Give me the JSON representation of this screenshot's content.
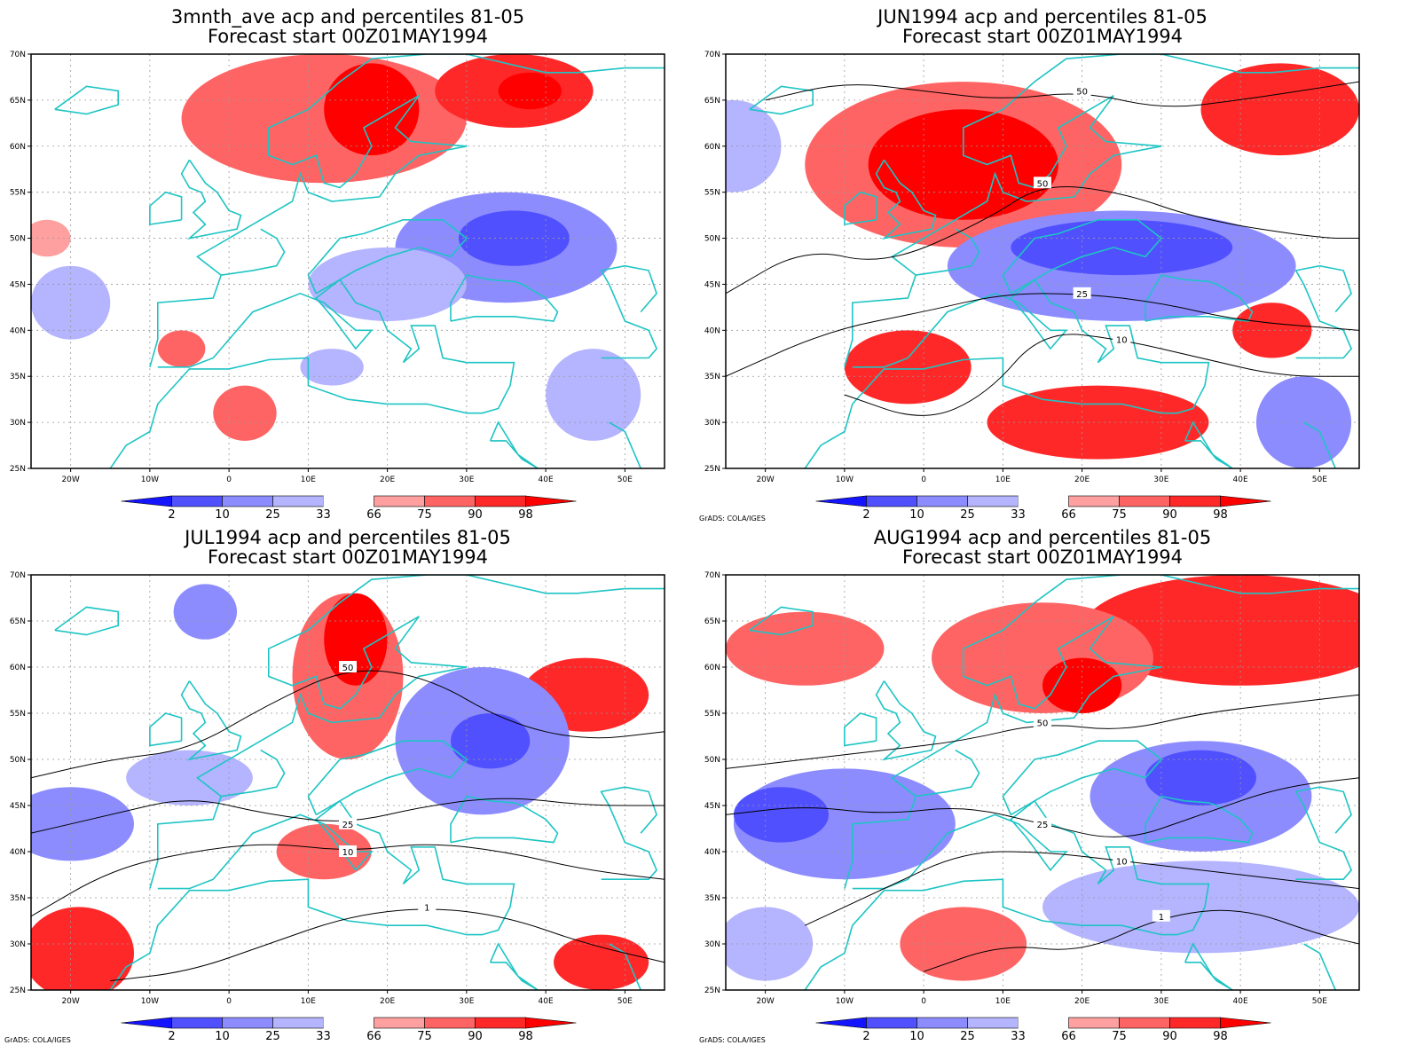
{
  "credit": "GrADS: COLA/IGES",
  "colors": {
    "coast": "#1ec4c4",
    "frame": "#000000",
    "contour": "#000000",
    "grid": "#999999",
    "bins": [
      "#1414ff",
      "#5050ff",
      "#8c8cff",
      "#b4b4ff",
      "#ffffff",
      "#ffa0a0",
      "#ff6464",
      "#ff2828",
      "#ff0000"
    ]
  },
  "colorbar_labels": [
    "2",
    "10",
    "25",
    "33",
    "66",
    "75",
    "90",
    "98"
  ],
  "axes": {
    "lat_labels": [
      "70N",
      "65N",
      "60N",
      "55N",
      "50N",
      "45N",
      "40N",
      "35N",
      "30N",
      "25N"
    ],
    "lon_labels": [
      "20W",
      "10W",
      "0",
      "10E",
      "20E",
      "30E",
      "40E",
      "50E"
    ]
  },
  "panels": [
    {
      "title1": "3mnth_ave acp and percentiles 81-05",
      "title2": "Forecast start 00Z01MAY1994",
      "show_credit": false,
      "anomalies": [
        {
          "lon": 12,
          "lat": 63,
          "rx": 18,
          "ry": 7,
          "cls": 6
        },
        {
          "lon": 18,
          "lat": 64,
          "rx": 6,
          "ry": 5,
          "cls": 8
        },
        {
          "lon": 36,
          "lat": 66,
          "rx": 10,
          "ry": 4,
          "cls": 7
        },
        {
          "lon": 38,
          "lat": 66,
          "rx": 4,
          "ry": 2,
          "cls": 8
        },
        {
          "lon": -23,
          "lat": 50,
          "rx": 3,
          "ry": 2,
          "cls": 5
        },
        {
          "lon": 2,
          "lat": 31,
          "rx": 4,
          "ry": 3,
          "cls": 6
        },
        {
          "lon": -6,
          "lat": 38,
          "rx": 3,
          "ry": 2,
          "cls": 6
        },
        {
          "lon": 35,
          "lat": 49,
          "rx": 14,
          "ry": 6,
          "cls": 2
        },
        {
          "lon": 36,
          "lat": 50,
          "rx": 7,
          "ry": 3,
          "cls": 1
        },
        {
          "lon": 20,
          "lat": 45,
          "rx": 10,
          "ry": 4,
          "cls": 3
        },
        {
          "lon": -20,
          "lat": 43,
          "rx": 5,
          "ry": 4,
          "cls": 3
        },
        {
          "lon": 46,
          "lat": 33,
          "rx": 6,
          "ry": 5,
          "cls": 3
        },
        {
          "lon": 13,
          "lat": 36,
          "rx": 4,
          "ry": 2,
          "cls": 3
        }
      ],
      "contours": []
    },
    {
      "title1": "JUN1994 acp and percentiles 81-05",
      "title2": "Forecast start 00Z01MAY1994",
      "show_credit": true,
      "anomalies": [
        {
          "lon": 5,
          "lat": 58,
          "rx": 20,
          "ry": 9,
          "cls": 6
        },
        {
          "lon": 5,
          "lat": 58,
          "rx": 12,
          "ry": 6,
          "cls": 8
        },
        {
          "lon": 45,
          "lat": 64,
          "rx": 10,
          "ry": 5,
          "cls": 7
        },
        {
          "lon": 22,
          "lat": 30,
          "rx": 14,
          "ry": 4,
          "cls": 7
        },
        {
          "lon": -2,
          "lat": 36,
          "rx": 8,
          "ry": 4,
          "cls": 7
        },
        {
          "lon": 25,
          "lat": 47,
          "rx": 22,
          "ry": 6,
          "cls": 2
        },
        {
          "lon": 25,
          "lat": 49,
          "rx": 14,
          "ry": 3,
          "cls": 1
        },
        {
          "lon": -24,
          "lat": 60,
          "rx": 6,
          "ry": 5,
          "cls": 3
        },
        {
          "lon": 48,
          "lat": 30,
          "rx": 6,
          "ry": 5,
          "cls": 2
        },
        {
          "lon": 44,
          "lat": 40,
          "rx": 5,
          "ry": 3,
          "cls": 7
        }
      ],
      "contours": [
        {
          "pts": [
            [
              -25,
              44
            ],
            [
              -15,
              49
            ],
            [
              -5,
              47
            ],
            [
              8,
              52
            ],
            [
              15,
              56
            ],
            [
              25,
              55
            ],
            [
              35,
              52
            ],
            [
              50,
              50
            ],
            [
              55,
              50
            ]
          ],
          "label": "50"
        },
        {
          "pts": [
            [
              -25,
              35
            ],
            [
              -12,
              40
            ],
            [
              0,
              42
            ],
            [
              10,
              44
            ],
            [
              20,
              44
            ],
            [
              30,
              43
            ],
            [
              40,
              41
            ],
            [
              55,
              40
            ]
          ],
          "label": "25"
        },
        {
          "pts": [
            [
              -10,
              33
            ],
            [
              0,
              30
            ],
            [
              8,
              33
            ],
            [
              15,
              40
            ],
            [
              25,
              39
            ],
            [
              35,
              37
            ],
            [
              45,
              35
            ],
            [
              55,
              35
            ]
          ],
          "label": "10"
        },
        {
          "pts": [
            [
              -20,
              65
            ],
            [
              -10,
              67
            ],
            [
              0,
              66
            ],
            [
              10,
              65
            ],
            [
              20,
              66
            ],
            [
              30,
              64
            ],
            [
              40,
              65
            ],
            [
              55,
              67
            ]
          ],
          "label": "50"
        }
      ]
    },
    {
      "title1": "JUL1994 acp and percentiles 81-05",
      "title2": "Forecast start 00Z01MAY1994",
      "show_credit": true,
      "anomalies": [
        {
          "lon": 15,
          "lat": 59,
          "rx": 7,
          "ry": 9,
          "cls": 6
        },
        {
          "lon": 16,
          "lat": 63,
          "rx": 4,
          "ry": 5,
          "cls": 8
        },
        {
          "lon": 45,
          "lat": 57,
          "rx": 8,
          "ry": 4,
          "cls": 7
        },
        {
          "lon": -19,
          "lat": 29,
          "rx": 7,
          "ry": 5,
          "cls": 7
        },
        {
          "lon": 47,
          "lat": 28,
          "rx": 6,
          "ry": 3,
          "cls": 7
        },
        {
          "lon": 32,
          "lat": 52,
          "rx": 11,
          "ry": 8,
          "cls": 2
        },
        {
          "lon": 33,
          "lat": 52,
          "rx": 5,
          "ry": 3,
          "cls": 1
        },
        {
          "lon": -3,
          "lat": 66,
          "rx": 4,
          "ry": 3,
          "cls": 2
        },
        {
          "lon": -20,
          "lat": 43,
          "rx": 8,
          "ry": 4,
          "cls": 2
        },
        {
          "lon": -5,
          "lat": 48,
          "rx": 8,
          "ry": 3,
          "cls": 3
        },
        {
          "lon": 12,
          "lat": 40,
          "rx": 6,
          "ry": 3,
          "cls": 6
        }
      ],
      "contours": [
        {
          "pts": [
            [
              -25,
              48
            ],
            [
              -15,
              50
            ],
            [
              -5,
              51
            ],
            [
              5,
              56
            ],
            [
              15,
              60
            ],
            [
              25,
              59
            ],
            [
              35,
              54
            ],
            [
              45,
              52
            ],
            [
              55,
              53
            ]
          ],
          "label": "50"
        },
        {
          "pts": [
            [
              -25,
              42
            ],
            [
              -15,
              44
            ],
            [
              -5,
              46
            ],
            [
              5,
              44
            ],
            [
              15,
              43
            ],
            [
              25,
              45
            ],
            [
              35,
              46
            ],
            [
              45,
              45
            ],
            [
              55,
              45
            ]
          ],
          "label": "25"
        },
        {
          "pts": [
            [
              -25,
              33
            ],
            [
              -15,
              38
            ],
            [
              -5,
              40
            ],
            [
              5,
              41
            ],
            [
              15,
              40
            ],
            [
              25,
              41
            ],
            [
              35,
              40
            ],
            [
              45,
              38
            ],
            [
              55,
              37
            ]
          ],
          "label": "10"
        },
        {
          "pts": [
            [
              -15,
              26
            ],
            [
              -5,
              27
            ],
            [
              5,
              30
            ],
            [
              15,
              33
            ],
            [
              25,
              34
            ],
            [
              35,
              33
            ],
            [
              45,
              30
            ],
            [
              55,
              28
            ]
          ],
          "label": "1"
        }
      ]
    },
    {
      "title1": "AUG1994 acp and percentiles 81-05",
      "title2": "Forecast start 00Z01MAY1994",
      "show_credit": true,
      "anomalies": [
        {
          "lon": 40,
          "lat": 64,
          "rx": 20,
          "ry": 6,
          "cls": 7
        },
        {
          "lon": 15,
          "lat": 61,
          "rx": 14,
          "ry": 6,
          "cls": 6
        },
        {
          "lon": -15,
          "lat": 62,
          "rx": 10,
          "ry": 4,
          "cls": 6
        },
        {
          "lon": 20,
          "lat": 58,
          "rx": 5,
          "ry": 3,
          "cls": 8
        },
        {
          "lon": 5,
          "lat": 30,
          "rx": 8,
          "ry": 4,
          "cls": 6
        },
        {
          "lon": -10,
          "lat": 43,
          "rx": 14,
          "ry": 6,
          "cls": 2
        },
        {
          "lon": -18,
          "lat": 44,
          "rx": 6,
          "ry": 3,
          "cls": 1
        },
        {
          "lon": 35,
          "lat": 46,
          "rx": 14,
          "ry": 6,
          "cls": 2
        },
        {
          "lon": 35,
          "lat": 48,
          "rx": 7,
          "ry": 3,
          "cls": 1
        },
        {
          "lon": 35,
          "lat": 34,
          "rx": 20,
          "ry": 5,
          "cls": 3
        },
        {
          "lon": -20,
          "lat": 30,
          "rx": 6,
          "ry": 4,
          "cls": 3
        }
      ],
      "contours": [
        {
          "pts": [
            [
              -25,
              49
            ],
            [
              -15,
              50
            ],
            [
              -5,
              51
            ],
            [
              5,
              52
            ],
            [
              15,
              54
            ],
            [
              25,
              53
            ],
            [
              35,
              55
            ],
            [
              45,
              56
            ],
            [
              55,
              57
            ]
          ],
          "label": "50"
        },
        {
          "pts": [
            [
              -25,
              44
            ],
            [
              -15,
              45
            ],
            [
              -5,
              44
            ],
            [
              5,
              45
            ],
            [
              15,
              43
            ],
            [
              25,
              41
            ],
            [
              35,
              44
            ],
            [
              45,
              47
            ],
            [
              55,
              48
            ]
          ],
          "label": "25"
        },
        {
          "pts": [
            [
              -15,
              32
            ],
            [
              -5,
              36
            ],
            [
              5,
              40
            ],
            [
              15,
              40
            ],
            [
              25,
              39
            ],
            [
              35,
              38
            ],
            [
              45,
              37
            ],
            [
              55,
              36
            ]
          ],
          "label": "10"
        },
        {
          "pts": [
            [
              0,
              27
            ],
            [
              10,
              30
            ],
            [
              20,
              29
            ],
            [
              30,
              33
            ],
            [
              40,
              34
            ],
            [
              50,
              31
            ],
            [
              55,
              30
            ]
          ],
          "label": "1"
        }
      ]
    }
  ]
}
